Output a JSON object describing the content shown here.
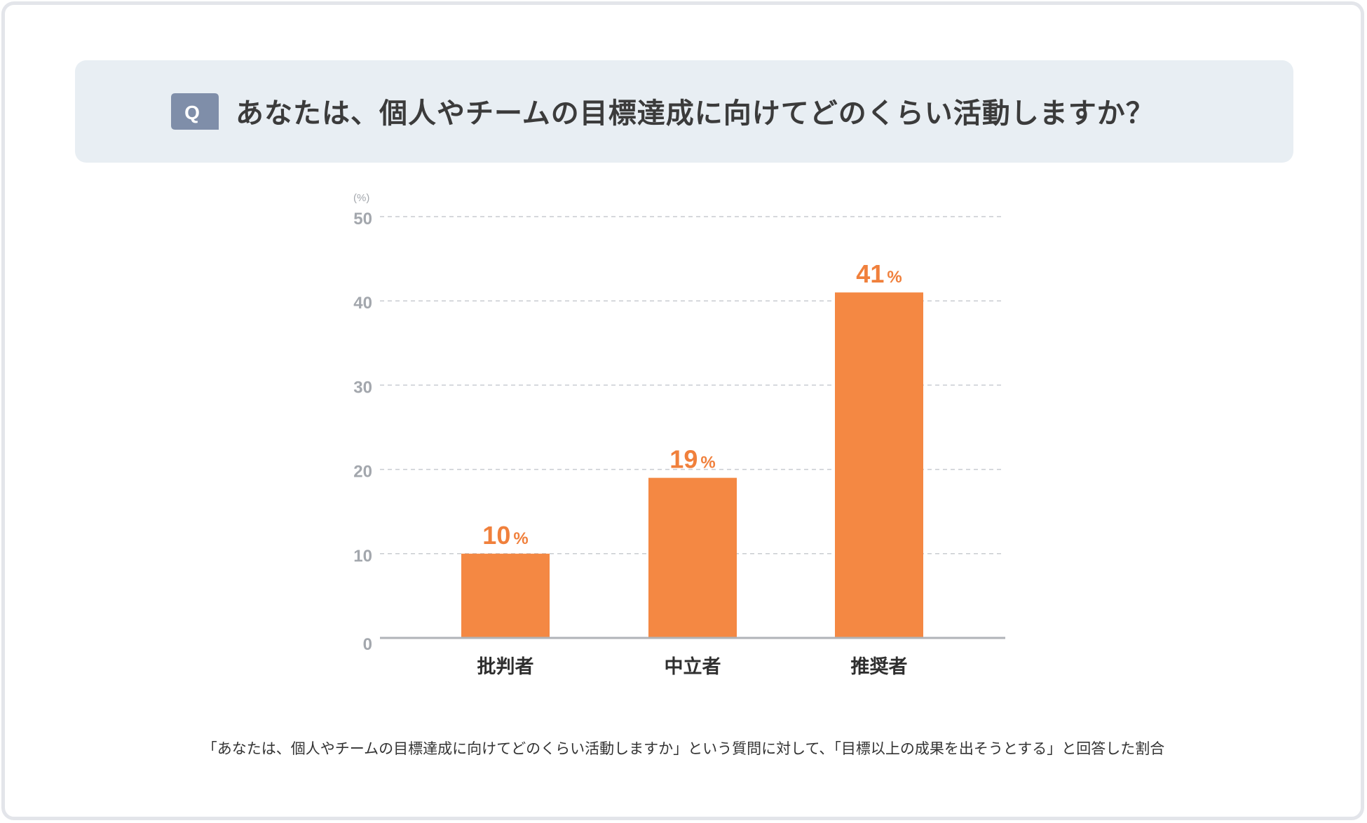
{
  "question": {
    "badge": "Q",
    "text": "あなたは、個人やチームの目標達成に向けてどのくらい活動しますか？"
  },
  "caption": "「あなたは、個人やチームの目標達成に向けてどのくらい活動しますか」という質問に対して、「目標以上の成果を出そうとする」と回答した割合",
  "colors": {
    "bar": "#f48843",
    "label": "#f0803c",
    "badge": "#7f8ea9",
    "banner": "#e8eef3",
    "axis": "#b0b3b8",
    "grid": "#c9ccd1",
    "tick": "#a3a7ad"
  },
  "chart_data": {
    "type": "bar",
    "title": "",
    "xlabel": "",
    "ylabel": "(%)",
    "ylim": [
      0,
      50
    ],
    "yticks": [
      0,
      10,
      20,
      30,
      40,
      50
    ],
    "grid": true,
    "categories": [
      "批判者",
      "中立者",
      "推奨者"
    ],
    "values": [
      10,
      19,
      41
    ],
    "value_suffix": "%"
  }
}
